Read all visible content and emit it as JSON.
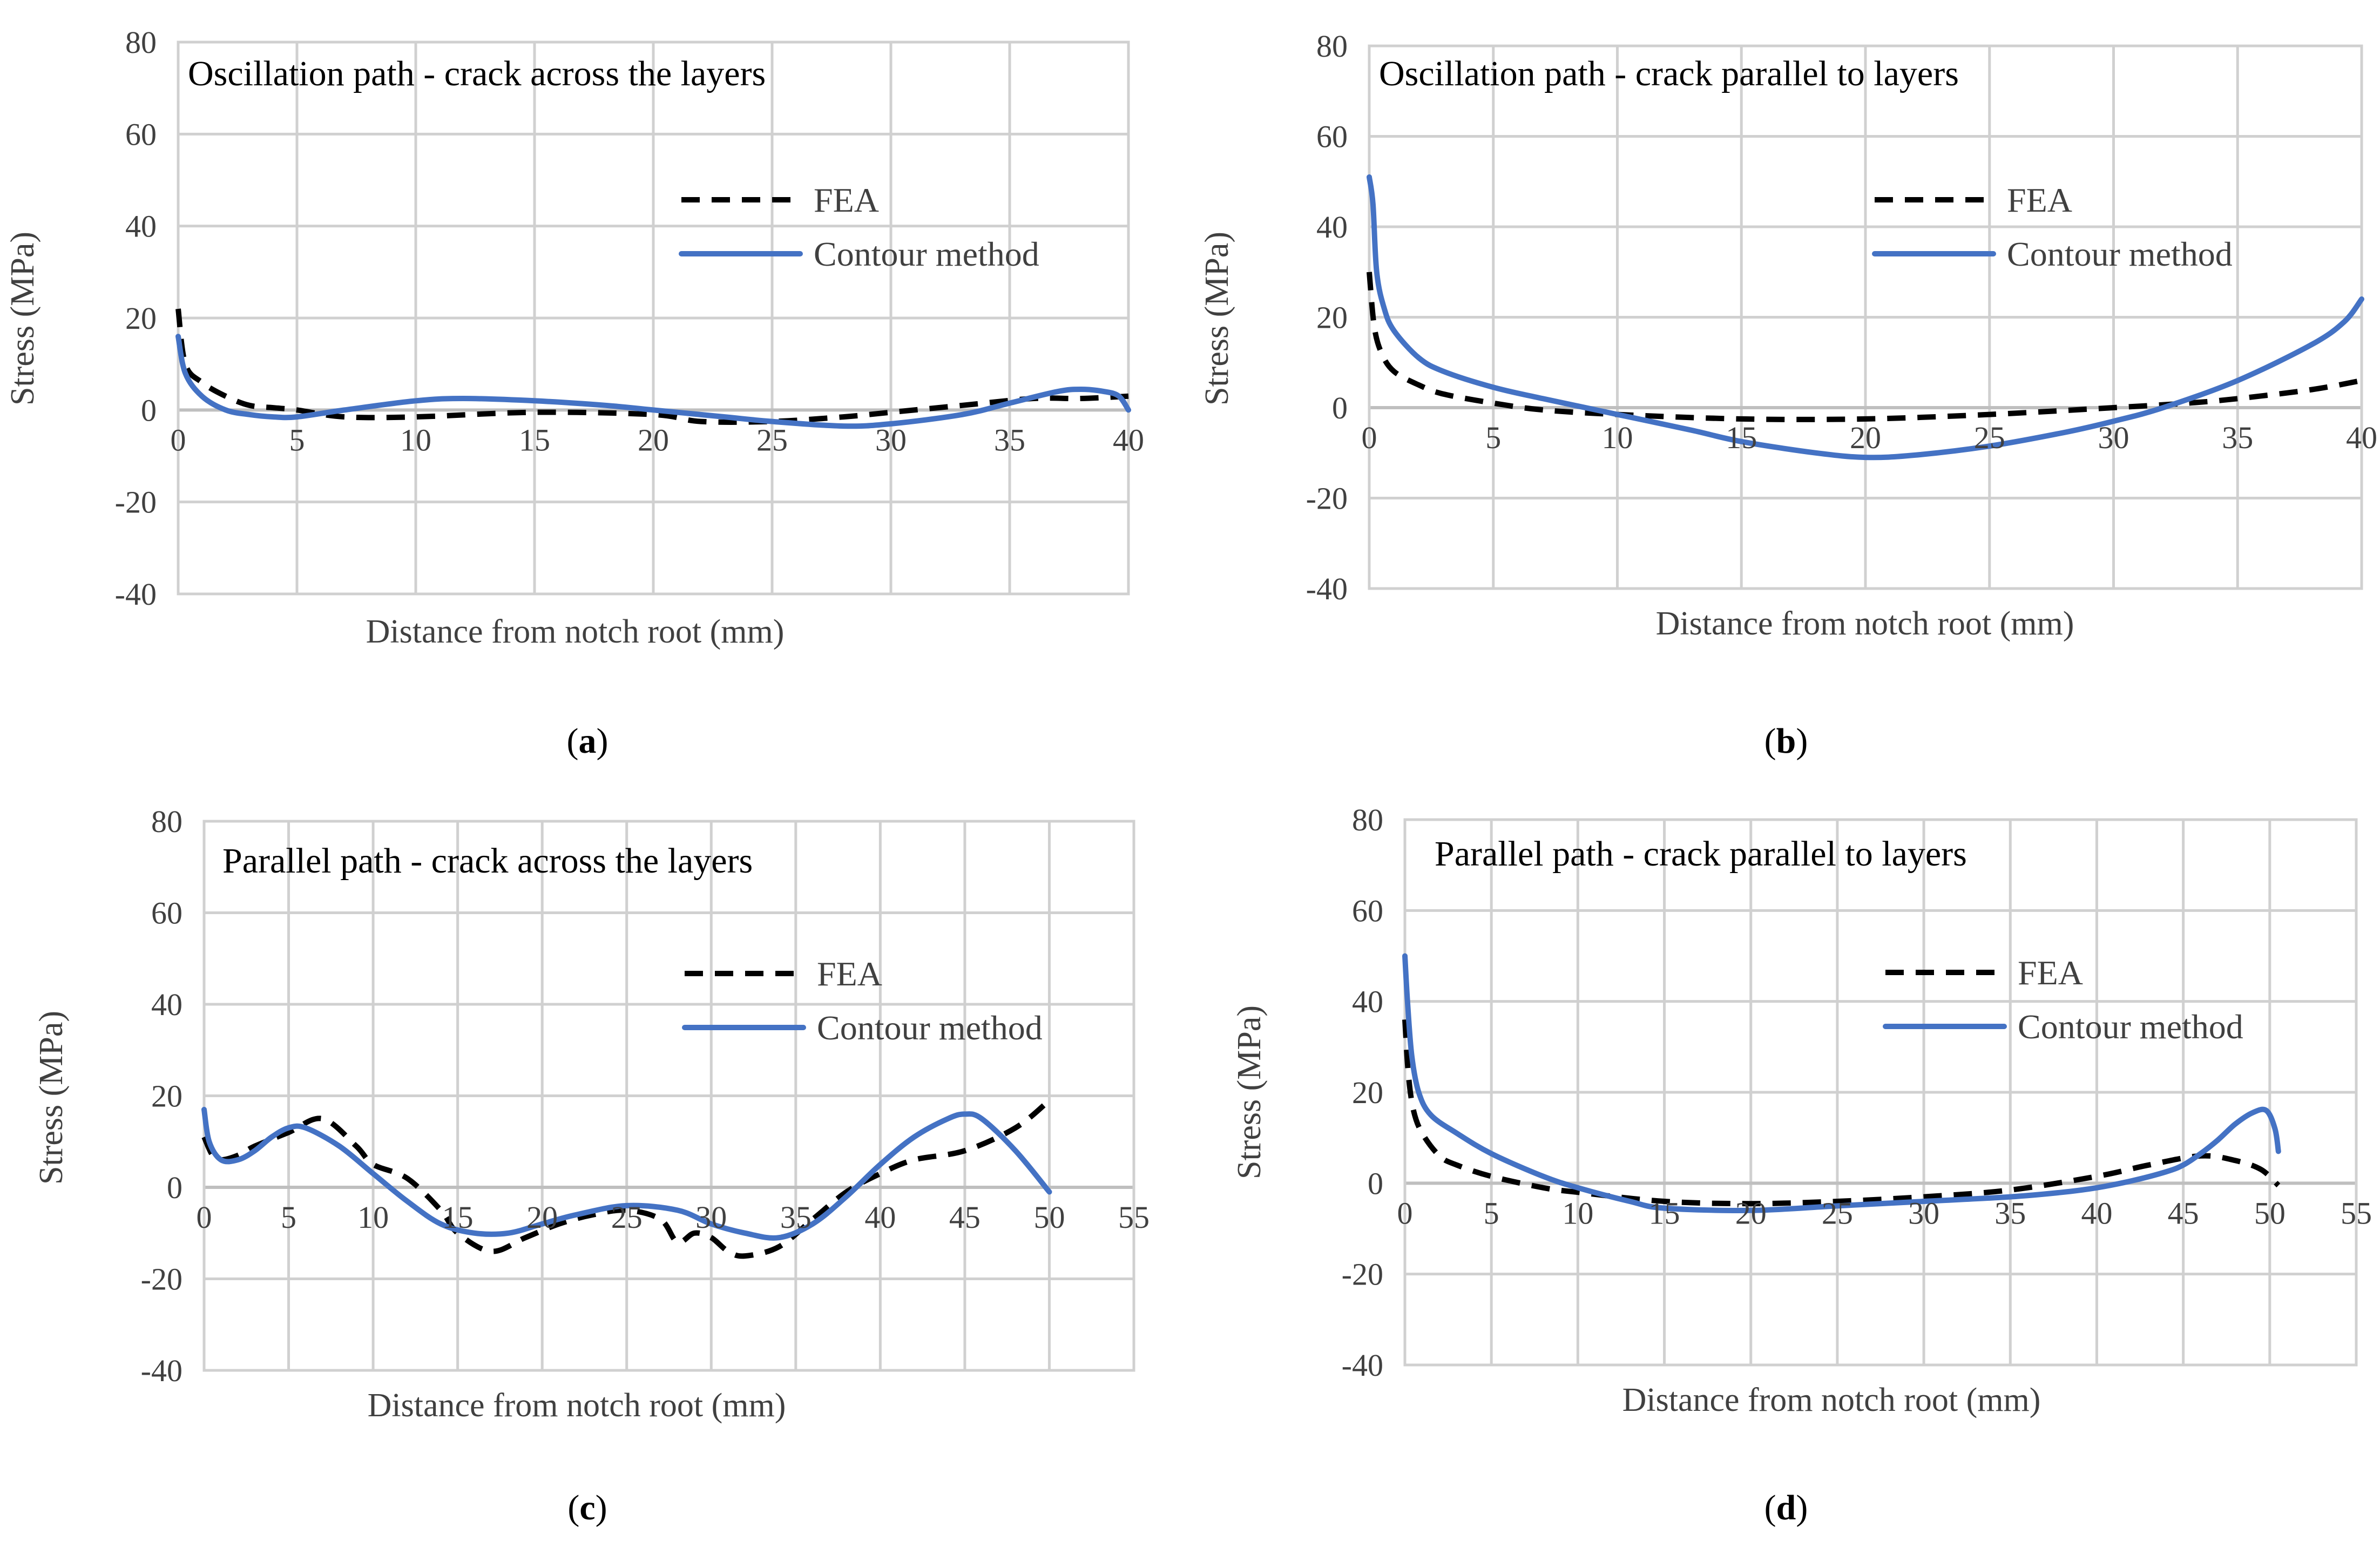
{
  "chart_data": [
    {
      "type": "line",
      "panel": "a",
      "title": "Oscillation path - crack across the layers",
      "xlabel": "Distance from notch root (mm)",
      "ylabel": "Stress (MPa)",
      "xlim": [
        0,
        40
      ],
      "ylim": [
        -40,
        80
      ],
      "xticks": [
        0,
        5,
        10,
        15,
        20,
        25,
        30,
        35,
        40
      ],
      "yticks": [
        -40,
        -20,
        0,
        20,
        40,
        60,
        80
      ],
      "legend_position": "top-right",
      "series": [
        {
          "name": "FEA",
          "style": "dashed",
          "color": "#000000",
          "x": [
            0,
            0.3,
            1,
            2,
            3,
            4,
            5,
            7,
            10,
            15,
            20,
            22,
            25,
            28,
            30,
            33,
            36,
            38,
            40
          ],
          "y": [
            22,
            10,
            6,
            3,
            1,
            0.5,
            0,
            -1.5,
            -1.5,
            -0.5,
            -1,
            -2.5,
            -2.5,
            -1.5,
            -0.5,
            1,
            2.5,
            2.5,
            3
          ]
        },
        {
          "name": "Contour method",
          "style": "solid",
          "color": "#4472c4",
          "x": [
            0,
            0.3,
            1,
            2,
            3,
            4,
            5,
            7,
            10,
            12,
            15,
            18,
            20,
            23,
            25,
            28,
            30,
            33,
            35,
            37,
            38,
            39,
            39.6,
            40
          ],
          "y": [
            16,
            8,
            3,
            0,
            -1,
            -1.5,
            -1.5,
            0,
            2,
            2.5,
            2,
            1,
            0,
            -1.5,
            -2.5,
            -3.5,
            -3,
            -1,
            1.5,
            4,
            4.5,
            4,
            3,
            0
          ]
        }
      ]
    },
    {
      "type": "line",
      "panel": "b",
      "title": "Oscillation path - crack parallel to layers",
      "xlabel": "Distance from notch root (mm)",
      "ylabel": "Stress (MPa)",
      "xlim": [
        0,
        40
      ],
      "ylim": [
        -40,
        80
      ],
      "xticks": [
        0,
        5,
        10,
        15,
        20,
        25,
        30,
        35,
        40
      ],
      "yticks": [
        -40,
        -20,
        0,
        20,
        40,
        60,
        80
      ],
      "legend_position": "top-right",
      "series": [
        {
          "name": "FEA",
          "style": "dashed",
          "color": "#000000",
          "x": [
            0,
            0.2,
            0.5,
            1,
            2,
            3,
            5,
            7,
            10,
            15,
            20,
            25,
            30,
            33,
            35,
            38,
            40
          ],
          "y": [
            30,
            18,
            12,
            8,
            5,
            3,
            1,
            -0.5,
            -1.5,
            -2.5,
            -2.5,
            -1.5,
            0,
            1,
            2,
            4,
            6
          ]
        },
        {
          "name": "Contour method",
          "style": "solid",
          "color": "#4472c4",
          "x": [
            0,
            0.15,
            0.3,
            0.6,
            1,
            2,
            3,
            5,
            7,
            10,
            13,
            15,
            18,
            20,
            22,
            25,
            28,
            30,
            32,
            35,
            38,
            39.3,
            40
          ],
          "y": [
            51,
            45,
            30,
            22,
            17,
            11,
            8,
            4.5,
            2,
            -1.5,
            -5,
            -7.5,
            -10,
            -11,
            -10.5,
            -8.5,
            -5.5,
            -3,
            0,
            6,
            14,
            19,
            24
          ]
        }
      ]
    },
    {
      "type": "line",
      "panel": "c",
      "title": "Parallel path - crack across the layers",
      "xlabel": "Distance from notch root (mm)",
      "ylabel": "Stress (MPa)",
      "xlim": [
        0,
        55
      ],
      "ylim": [
        -40,
        80
      ],
      "xticks": [
        0,
        5,
        10,
        15,
        20,
        25,
        30,
        35,
        40,
        45,
        50,
        55
      ],
      "yticks": [
        -40,
        -20,
        0,
        20,
        40,
        60,
        80
      ],
      "legend_position": "top-right",
      "series": [
        {
          "name": "FEA",
          "style": "dashed",
          "color": "#000000",
          "x": [
            0,
            0.5,
            1,
            2,
            3,
            5,
            7,
            9,
            10,
            12,
            14,
            15,
            17,
            19,
            21,
            23,
            25,
            27,
            28,
            29,
            30,
            31,
            32,
            34,
            36,
            38,
            40,
            42,
            45,
            48,
            50
          ],
          "y": [
            11,
            7,
            6,
            7,
            9,
            12,
            15,
            9,
            5,
            2,
            -5,
            -10,
            -14,
            -11,
            -8,
            -6,
            -5,
            -7,
            -12,
            -10,
            -11,
            -14,
            -15,
            -13,
            -7,
            -1,
            3,
            6,
            8,
            13,
            19
          ]
        },
        {
          "name": "Contour method",
          "style": "solid",
          "color": "#4472c4",
          "x": [
            0,
            0.3,
            1,
            2,
            3,
            4,
            5,
            6,
            8,
            10,
            12,
            14,
            16,
            18,
            20,
            22,
            25,
            28,
            30,
            32,
            34,
            36,
            38,
            40,
            42,
            44,
            45,
            46,
            48,
            50
          ],
          "y": [
            17,
            10,
            6,
            6,
            8,
            11,
            13,
            13,
            9,
            3,
            -3,
            -8,
            -10,
            -10,
            -8,
            -6,
            -4,
            -5,
            -8,
            -10,
            -11,
            -8,
            -2,
            5,
            11,
            15,
            16,
            15,
            8,
            -1
          ]
        }
      ]
    },
    {
      "type": "line",
      "panel": "d",
      "title": "Parallel path - crack parallel to layers",
      "xlabel": "Distance from notch root (mm)",
      "ylabel": "Stress (MPa)",
      "xlim": [
        0,
        55
      ],
      "ylim": [
        -40,
        80
      ],
      "xticks": [
        0,
        5,
        10,
        15,
        20,
        25,
        30,
        35,
        40,
        45,
        50,
        55
      ],
      "yticks": [
        -40,
        -20,
        0,
        20,
        40,
        60,
        80
      ],
      "legend_position": "top-right",
      "series": [
        {
          "name": "FEA",
          "style": "dashed",
          "color": "#000000",
          "x": [
            0,
            0.2,
            0.5,
            1,
            2,
            3,
            5,
            8,
            10,
            15,
            20,
            25,
            30,
            35,
            40,
            43,
            46,
            48,
            49.5,
            50.5
          ],
          "y": [
            36,
            24,
            16,
            11,
            6,
            4,
            1.5,
            -1,
            -2,
            -4,
            -4.5,
            -4,
            -3,
            -1.5,
            1.5,
            4,
            6,
            5,
            3,
            -0.5
          ]
        },
        {
          "name": "Contour method",
          "style": "solid",
          "color": "#4472c4",
          "x": [
            0,
            0.15,
            0.4,
            0.8,
            1.5,
            3,
            5,
            8,
            10,
            13,
            15,
            20,
            25,
            30,
            35,
            38,
            40,
            42,
            44,
            45,
            46,
            47,
            48,
            49,
            49.8,
            50.3,
            50.5
          ],
          "y": [
            50,
            40,
            28,
            20,
            15,
            11,
            6.5,
            1.5,
            -1,
            -4,
            -5.5,
            -6,
            -5,
            -4,
            -3,
            -2,
            -1,
            0.5,
            2.5,
            4,
            6.5,
            9.5,
            13,
            15.5,
            16,
            12,
            7
          ]
        }
      ]
    }
  ],
  "captions": [
    "a",
    "b",
    "c",
    "d"
  ]
}
